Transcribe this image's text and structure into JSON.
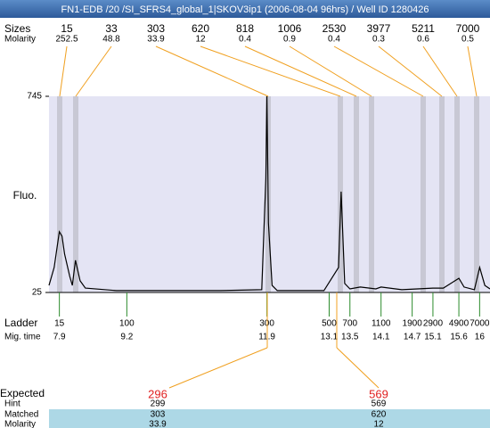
{
  "header": {
    "title": "FN1-EDB /20 /SI_SFRS4_global_1|SKOV3ip1 (2006-08-04 96hrs) / Well ID 1280426"
  },
  "chart_data": {
    "type": "line",
    "ylabel": "Fluo.",
    "ylim": [
      25,
      745
    ],
    "yticks": [
      25,
      745
    ],
    "xlim": [
      7.7,
      16.2
    ],
    "color": "#000000",
    "x": [
      7.7,
      7.8,
      7.9,
      7.95,
      8.0,
      8.1,
      8.15,
      8.21,
      8.3,
      8.4,
      9,
      11,
      11.8,
      11.88,
      11.9,
      11.93,
      12.0,
      12.1,
      13.0,
      13.28,
      13.33,
      13.4,
      13.5,
      13.7,
      14.0,
      14.1,
      14.5,
      15.1,
      15.3,
      15.6,
      15.7,
      15.9,
      16.0,
      16.1,
      16.2
    ],
    "values": [
      51,
      117,
      248,
      232,
      166,
      84,
      51,
      143,
      68,
      41,
      32,
      32,
      35,
      444,
      745,
      280,
      51,
      32,
      32,
      117,
      395,
      58,
      38,
      45,
      38,
      45,
      35,
      41,
      41,
      77,
      45,
      35,
      117,
      51,
      38
    ]
  },
  "peaks": {
    "labels": [
      "Sizes",
      "Molarity"
    ],
    "sizes": [
      15,
      33,
      303,
      620,
      818,
      1006,
      2530,
      3977,
      5211,
      7000
    ],
    "molarity": [
      252.5,
      48.8,
      33.9,
      12,
      0.4,
      0.9,
      0.4,
      0.3,
      0.6,
      0.5
    ]
  },
  "ladder": {
    "labels": [
      "Ladder",
      "Mig. time"
    ],
    "sizes": [
      15,
      100,
      300,
      500,
      700,
      1100,
      1900,
      2900,
      4900,
      7000
    ],
    "mig_times": [
      7.9,
      9.2,
      11.9,
      13.1,
      13.5,
      14.1,
      14.7,
      15.1,
      15.6,
      16
    ]
  },
  "expected": {
    "labels": [
      "Expected",
      "Hint",
      "Matched",
      "Molarity"
    ],
    "expected": [
      296,
      569
    ],
    "hint": [
      299,
      569
    ],
    "matched": [
      303,
      620
    ],
    "molarity": [
      33.9,
      12
    ]
  }
}
